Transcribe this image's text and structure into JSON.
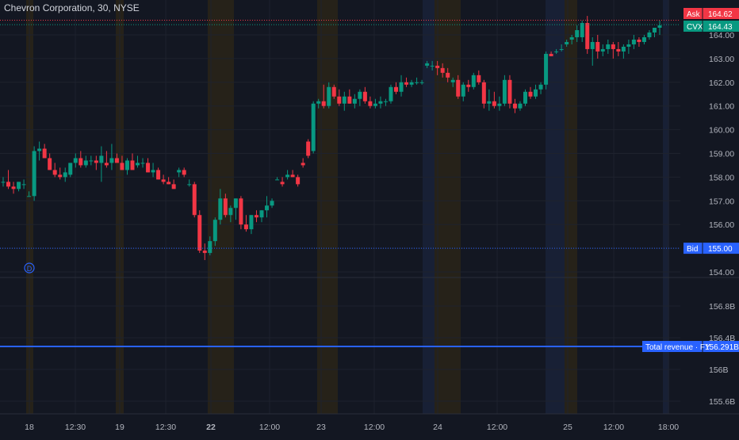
{
  "chart_data": {
    "type": "candlestick",
    "title": "Chevron Corporation, 30, NYSE",
    "price_axis": {
      "ticks": [
        "164.00",
        "163.00",
        "162.00",
        "161.00",
        "160.00",
        "159.00",
        "158.00",
        "157.00",
        "156.00",
        "155.00",
        "154.00"
      ]
    },
    "revenue_axis": {
      "ticks": [
        "156.8B",
        "156.4B",
        "156B",
        "155.6B"
      ]
    },
    "x_ticks": [
      "18",
      "12:30",
      "19",
      "12:30",
      "22",
      "12:00",
      "23",
      "12:00",
      "24",
      "12:00",
      "25",
      "12:00",
      "18:00"
    ],
    "price_labels": {
      "ask": {
        "label": "Ask",
        "value": "164.62",
        "y": 164.62
      },
      "last": {
        "label": "CVX",
        "value": "164.43",
        "y": 164.43
      },
      "bid": {
        "label": "Bid",
        "value": "155.00",
        "y": 155.0
      }
    },
    "revenue_line": {
      "label": "Total revenue · FY",
      "value": "156.291B"
    },
    "dividend_marker": "D",
    "candles": [
      [
        157.8,
        158.0,
        157.6,
        157.8
      ],
      [
        157.8,
        158.3,
        157.5,
        157.6
      ],
      [
        157.6,
        157.8,
        157.3,
        157.5
      ],
      [
        157.5,
        157.8,
        157.4,
        157.8
      ],
      [
        157.7,
        157.9,
        157.5,
        157.7
      ],
      [
        157.2,
        157.4,
        157.2,
        157.2
      ],
      [
        157.2,
        159.3,
        157.0,
        159.1
      ],
      [
        159.1,
        159.5,
        158.7,
        159.2
      ],
      [
        159.2,
        159.4,
        158.8,
        158.8
      ],
      [
        158.8,
        159.0,
        158.3,
        158.3
      ],
      [
        158.3,
        158.6,
        158.0,
        158.1
      ],
      [
        158.1,
        158.4,
        157.9,
        158.0
      ],
      [
        158.0,
        158.4,
        157.8,
        158.2
      ],
      [
        158.1,
        158.6,
        158.0,
        158.6
      ],
      [
        158.6,
        159.0,
        158.4,
        158.8
      ],
      [
        158.8,
        159.1,
        158.4,
        158.5
      ],
      [
        158.5,
        158.9,
        158.4,
        158.7
      ],
      [
        158.7,
        158.9,
        158.5,
        158.7
      ],
      [
        158.7,
        158.9,
        158.3,
        158.6
      ],
      [
        158.6,
        159.3,
        157.8,
        158.9
      ],
      [
        158.6,
        159.1,
        158.4,
        158.5
      ],
      [
        158.6,
        159.4,
        158.3,
        158.8
      ],
      [
        158.8,
        159.0,
        158.6,
        158.6
      ],
      [
        158.6,
        158.9,
        158.3,
        158.3
      ],
      [
        158.3,
        158.8,
        158.1,
        158.7
      ],
      [
        158.7,
        159.0,
        158.4,
        158.3
      ],
      [
        158.5,
        158.9,
        158.4,
        158.6
      ],
      [
        158.6,
        158.8,
        158.4,
        158.6
      ],
      [
        158.6,
        158.8,
        158.2,
        158.2
      ],
      [
        158.2,
        158.6,
        158.0,
        158.3
      ],
      [
        158.3,
        158.4,
        157.9,
        157.9
      ],
      [
        157.9,
        158.1,
        157.7,
        157.8
      ],
      [
        157.8,
        158.0,
        157.7,
        157.7
      ],
      [
        157.7,
        157.9,
        157.5,
        157.5
      ],
      [
        158.2,
        158.4,
        158.0,
        158.3
      ],
      [
        158.3,
        158.4,
        158.0,
        158.1
      ],
      [
        157.7,
        157.9,
        157.6,
        157.7
      ],
      [
        157.7,
        157.8,
        156.3,
        156.4
      ],
      [
        156.4,
        156.6,
        154.8,
        154.9
      ],
      [
        154.9,
        155.2,
        154.5,
        154.8
      ],
      [
        154.8,
        155.5,
        154.7,
        155.3
      ],
      [
        155.3,
        156.3,
        155.1,
        156.2
      ],
      [
        156.2,
        157.5,
        156.0,
        157.1
      ],
      [
        157.1,
        157.3,
        156.3,
        156.4
      ],
      [
        156.4,
        156.8,
        156.1,
        156.7
      ],
      [
        156.7,
        157.1,
        156.2,
        157.1
      ],
      [
        157.1,
        157.2,
        155.8,
        156.0
      ],
      [
        156.0,
        156.4,
        155.7,
        155.8
      ],
      [
        155.8,
        156.4,
        155.6,
        156.4
      ],
      [
        156.4,
        156.6,
        156.1,
        156.3
      ],
      [
        156.3,
        156.6,
        156.1,
        156.6
      ],
      [
        156.6,
        157.2,
        156.3,
        156.8
      ],
      [
        156.8,
        157.1,
        156.7,
        157.0
      ],
      [
        157.9,
        158.0,
        157.9,
        157.9
      ],
      [
        157.8,
        158.0,
        157.6,
        157.7
      ],
      [
        158.0,
        158.3,
        157.9,
        158.1
      ],
      [
        158.1,
        158.3,
        158.0,
        158.0
      ],
      [
        158.0,
        158.1,
        157.6,
        157.7
      ],
      [
        158.6,
        158.8,
        158.4,
        158.5
      ],
      [
        159.5,
        159.6,
        158.8,
        158.9
      ],
      [
        159.1,
        161.2,
        159.0,
        161.1
      ],
      [
        161.1,
        161.3,
        160.9,
        161.2
      ],
      [
        161.2,
        161.9,
        160.9,
        161.0
      ],
      [
        161.0,
        162.0,
        160.9,
        161.8
      ],
      [
        161.8,
        161.9,
        161.3,
        161.4
      ],
      [
        161.4,
        161.7,
        161.0,
        161.1
      ],
      [
        161.1,
        161.6,
        160.8,
        161.4
      ],
      [
        161.4,
        161.7,
        161.1,
        161.1
      ],
      [
        161.1,
        161.5,
        160.9,
        161.3
      ],
      [
        161.3,
        161.7,
        161.0,
        161.6
      ],
      [
        161.6,
        161.8,
        161.1,
        161.2
      ],
      [
        161.2,
        161.4,
        160.9,
        161.0
      ],
      [
        161.0,
        161.3,
        160.9,
        161.1
      ],
      [
        161.1,
        161.4,
        160.9,
        161.2
      ],
      [
        161.2,
        161.3,
        161.0,
        161.2
      ],
      [
        161.2,
        161.9,
        161.1,
        161.8
      ],
      [
        161.8,
        162.0,
        161.5,
        161.6
      ],
      [
        161.6,
        162.3,
        161.4,
        162.0
      ],
      [
        162.0,
        162.2,
        161.8,
        161.9
      ],
      [
        161.9,
        162.1,
        161.8,
        162.0
      ],
      [
        162.0,
        162.2,
        161.9,
        162.0
      ],
      [
        162.0,
        162.1,
        161.9,
        162.0
      ],
      [
        162.7,
        162.9,
        162.6,
        162.8
      ],
      [
        162.7,
        162.9,
        162.5,
        162.7
      ],
      [
        162.7,
        162.9,
        162.3,
        162.6
      ],
      [
        162.6,
        162.8,
        162.2,
        162.4
      ],
      [
        162.4,
        162.6,
        162.0,
        162.2
      ],
      [
        162.0,
        162.2,
        161.8,
        162.1
      ],
      [
        162.1,
        162.3,
        161.3,
        161.4
      ],
      [
        161.4,
        162.0,
        161.2,
        161.9
      ],
      [
        161.9,
        162.1,
        161.6,
        161.8
      ],
      [
        161.8,
        162.4,
        161.7,
        162.3
      ],
      [
        162.3,
        162.5,
        161.9,
        162.0
      ],
      [
        162.0,
        162.1,
        160.9,
        161.1
      ],
      [
        161.1,
        161.7,
        160.8,
        161.2
      ],
      [
        161.2,
        161.6,
        160.9,
        161.0
      ],
      [
        161.0,
        161.4,
        160.8,
        161.1
      ],
      [
        161.1,
        162.3,
        161.0,
        162.1
      ],
      [
        162.1,
        162.3,
        160.9,
        161.1
      ],
      [
        161.1,
        161.3,
        160.7,
        160.9
      ],
      [
        160.9,
        161.2,
        160.8,
        161.1
      ],
      [
        161.1,
        161.7,
        161.0,
        161.6
      ],
      [
        161.6,
        161.8,
        161.3,
        161.4
      ],
      [
        161.4,
        161.9,
        161.3,
        161.7
      ],
      [
        161.7,
        162.0,
        161.5,
        161.9
      ],
      [
        161.9,
        163.3,
        161.7,
        163.2
      ],
      [
        163.2,
        163.3,
        163.1,
        163.1
      ],
      [
        163.3,
        163.4,
        163.2,
        163.3
      ],
      [
        163.4,
        163.6,
        163.3,
        163.4
      ],
      [
        163.6,
        163.8,
        163.5,
        163.7
      ],
      [
        163.8,
        164.0,
        163.6,
        163.9
      ],
      [
        163.9,
        164.4,
        163.7,
        164.2
      ],
      [
        163.9,
        164.6,
        163.7,
        164.5
      ],
      [
        164.5,
        164.8,
        163.2,
        163.4
      ],
      [
        163.4,
        163.9,
        162.7,
        163.7
      ],
      [
        163.7,
        164.0,
        163.0,
        163.3
      ],
      [
        163.3,
        163.6,
        163.1,
        163.4
      ],
      [
        163.4,
        163.8,
        163.2,
        163.6
      ],
      [
        163.6,
        163.7,
        163.0,
        163.4
      ],
      [
        163.4,
        163.7,
        163.1,
        163.3
      ],
      [
        163.3,
        163.6,
        163.0,
        163.5
      ],
      [
        163.5,
        163.8,
        163.2,
        163.6
      ],
      [
        163.6,
        164.0,
        163.4,
        163.8
      ],
      [
        163.8,
        163.9,
        163.5,
        163.7
      ],
      [
        163.7,
        164.0,
        163.6,
        163.9
      ],
      [
        163.9,
        164.2,
        163.8,
        164.1
      ],
      [
        164.1,
        164.3,
        163.9,
        164.3
      ],
      [
        164.3,
        164.6,
        164.0,
        164.4
      ]
    ]
  }
}
